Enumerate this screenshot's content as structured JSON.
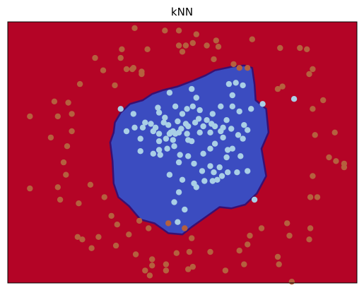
{
  "chart_data": {
    "type": "scatter",
    "title": "kNN",
    "xlabel": "",
    "ylabel": "",
    "xlim": [
      -1.5,
      1.5
    ],
    "ylim": [
      -1.1,
      1.0
    ],
    "grid": false,
    "ticks": false,
    "colors": {
      "class_0_region": "#b40426",
      "class_1_region": "#3b4cc0",
      "boundary": "#3b0f70",
      "class_0_point": "#b5603e",
      "class_1_point": "#a9cfe6"
    },
    "decision_region_class_1_outline": [
      [
        -0.58,
        0.19
      ],
      [
        -0.53,
        0.27
      ],
      [
        -0.45,
        0.34
      ],
      [
        -0.34,
        0.37
      ],
      [
        -0.26,
        0.42
      ],
      [
        -0.17,
        0.45
      ],
      [
        -0.04,
        0.48
      ],
      [
        0.1,
        0.53
      ],
      [
        0.2,
        0.57
      ],
      [
        0.28,
        0.61
      ],
      [
        0.43,
        0.64
      ],
      [
        0.53,
        0.65
      ],
      [
        0.6,
        0.63
      ],
      [
        0.62,
        0.5
      ],
      [
        0.63,
        0.37
      ],
      [
        0.72,
        0.3
      ],
      [
        0.74,
        0.11
      ],
      [
        0.68,
        -0.02
      ],
      [
        0.72,
        -0.24
      ],
      [
        0.64,
        -0.38
      ],
      [
        0.54,
        -0.47
      ],
      [
        0.42,
        -0.5
      ],
      [
        0.32,
        -0.49
      ],
      [
        0.23,
        -0.55
      ],
      [
        0.08,
        -0.65
      ],
      [
        0.0,
        -0.71
      ],
      [
        -0.12,
        -0.7
      ],
      [
        -0.24,
        -0.62
      ],
      [
        -0.36,
        -0.59
      ],
      [
        -0.46,
        -0.48
      ],
      [
        -0.55,
        -0.41
      ],
      [
        -0.59,
        -0.3
      ],
      [
        -0.6,
        -0.12
      ],
      [
        -0.62,
        0.03
      ],
      [
        -0.59,
        0.11
      ]
    ],
    "series": [
      {
        "class": 0,
        "points": [
          [
            -0.41,
            0.95
          ],
          [
            -0.15,
            0.93
          ],
          [
            -0.03,
            0.93
          ],
          [
            0.12,
            0.9
          ],
          [
            0.29,
            0.85
          ],
          [
            0.6,
            0.86
          ],
          [
            0.84,
            0.79
          ],
          [
            -0.52,
            0.78
          ],
          [
            -0.53,
            0.71
          ],
          [
            -0.3,
            0.78
          ],
          [
            -0.03,
            0.81
          ],
          [
            0.21,
            0.81
          ],
          [
            0.31,
            0.8
          ],
          [
            -0.75,
            0.71
          ],
          [
            -0.68,
            0.61
          ],
          [
            -0.48,
            0.62
          ],
          [
            -0.42,
            0.63
          ],
          [
            -0.35,
            0.58
          ],
          [
            0.0,
            0.76
          ],
          [
            0.03,
            0.81
          ],
          [
            0.09,
            0.83
          ],
          [
            0.27,
            0.7
          ],
          [
            1.01,
            0.79
          ],
          [
            1.07,
            0.78
          ],
          [
            0.44,
            0.66
          ],
          [
            0.49,
            0.63
          ],
          [
            0.56,
            0.63
          ],
          [
            1.09,
            0.58
          ],
          [
            1.12,
            0.62
          ],
          [
            -0.88,
            0.5
          ],
          [
            -0.98,
            0.35
          ],
          [
            -1.1,
            0.36
          ],
          [
            -0.58,
            0.49
          ],
          [
            0.82,
            0.46
          ],
          [
            0.86,
            0.48
          ],
          [
            1.21,
            0.37
          ],
          [
            1.12,
            0.3
          ],
          [
            -0.95,
            0.26
          ],
          [
            -1.07,
            0.24
          ],
          [
            -1.31,
            0.24
          ],
          [
            -0.95,
            0.12
          ],
          [
            -1.13,
            0.07
          ],
          [
            -0.99,
            0.0
          ],
          [
            1.14,
            0.09
          ],
          [
            1.31,
            0.11
          ],
          [
            -1.02,
            -0.13
          ],
          [
            1.26,
            -0.09
          ],
          [
            1.32,
            -0.12
          ],
          [
            1.39,
            -0.14
          ],
          [
            1.39,
            -0.17
          ],
          [
            1.12,
            -0.24
          ],
          [
            -1.0,
            -0.23
          ],
          [
            -1.31,
            -0.34
          ],
          [
            -1.07,
            -0.33
          ],
          [
            -0.79,
            -0.31
          ],
          [
            -0.67,
            -0.41
          ],
          [
            -0.89,
            -0.46
          ],
          [
            -1.05,
            -0.43
          ],
          [
            1.1,
            -0.41
          ],
          [
            1.16,
            -0.41
          ],
          [
            -0.61,
            -0.56
          ],
          [
            -0.56,
            -0.63
          ],
          [
            -0.37,
            -0.6
          ],
          [
            -0.29,
            -0.66
          ],
          [
            -0.12,
            -0.62
          ],
          [
            0.02,
            -0.66
          ],
          [
            0.08,
            -0.74
          ],
          [
            0.58,
            -0.72
          ],
          [
            0.68,
            -0.66
          ],
          [
            0.9,
            -0.62
          ],
          [
            1.1,
            -0.66
          ],
          [
            1.09,
            -0.75
          ],
          [
            -0.46,
            -0.71
          ],
          [
            -0.72,
            -0.73
          ],
          [
            -0.78,
            -0.82
          ],
          [
            -0.57,
            -0.8
          ],
          [
            -0.4,
            -0.87
          ],
          [
            -0.14,
            -0.95
          ],
          [
            -0.05,
            -0.86
          ],
          [
            0.06,
            -0.85
          ],
          [
            0.24,
            -0.85
          ],
          [
            0.49,
            -0.84
          ],
          [
            0.56,
            -0.79
          ],
          [
            0.82,
            -0.89
          ],
          [
            -0.9,
            -0.73
          ],
          [
            -0.86,
            -0.75
          ],
          [
            -0.32,
            -1.0
          ],
          [
            -0.14,
            -1.0
          ],
          [
            0.09,
            -0.97
          ],
          [
            0.05,
            -0.99
          ],
          [
            0.37,
            -1.0
          ],
          [
            0.53,
            -0.95
          ],
          [
            0.83,
            -0.95
          ],
          [
            -0.26,
            -0.91
          ],
          [
            -0.26,
            -0.96
          ],
          [
            -0.28,
            -1.04
          ],
          [
            0.92,
            -0.72
          ],
          [
            0.94,
            -1.09
          ],
          [
            -0.43,
            0.62
          ],
          [
            -0.35,
            0.6
          ]
        ]
      },
      {
        "class": 1,
        "points": [
          [
            0.4,
            0.5
          ],
          [
            0.46,
            0.51
          ],
          [
            0.52,
            0.49
          ],
          [
            0.08,
            0.46
          ],
          [
            -0.11,
            0.43
          ],
          [
            0.12,
            0.39
          ],
          [
            -0.53,
            0.3
          ],
          [
            -0.21,
            0.31
          ],
          [
            -0.06,
            0.32
          ],
          [
            -0.2,
            0.27
          ],
          [
            -0.15,
            0.23
          ],
          [
            -0.16,
            0.19
          ],
          [
            -0.12,
            0.17
          ],
          [
            -0.04,
            0.2
          ],
          [
            -0.27,
            0.18
          ],
          [
            0.0,
            0.26
          ],
          [
            0.04,
            0.3
          ],
          [
            0.09,
            0.32
          ],
          [
            0.15,
            0.29
          ],
          [
            0.26,
            0.26
          ],
          [
            0.33,
            0.32
          ],
          [
            0.43,
            0.32
          ],
          [
            0.43,
            0.41
          ],
          [
            0.49,
            0.28
          ],
          [
            0.59,
            0.3
          ],
          [
            0.69,
            0.34
          ],
          [
            0.96,
            0.38
          ],
          [
            -0.42,
            0.26
          ],
          [
            -0.32,
            0.19
          ],
          [
            -0.41,
            0.15
          ],
          [
            -0.34,
            0.15
          ],
          [
            -0.25,
            0.12
          ],
          [
            -0.2,
            0.1
          ],
          [
            -0.03,
            0.11
          ],
          [
            -0.01,
            0.14
          ],
          [
            0.03,
            0.18
          ],
          [
            0.05,
            0.16
          ],
          [
            0.11,
            0.19
          ],
          [
            0.14,
            0.22
          ],
          [
            0.18,
            0.16
          ],
          [
            0.21,
            0.21
          ],
          [
            0.25,
            0.18
          ],
          [
            0.28,
            0.16
          ],
          [
            0.35,
            0.15
          ],
          [
            0.38,
            0.21
          ],
          [
            0.42,
            0.14
          ],
          [
            0.53,
            0.17
          ],
          [
            0.56,
            0.13
          ],
          [
            -0.48,
            0.12
          ],
          [
            -0.36,
            0.06
          ],
          [
            -0.2,
            0.04
          ],
          [
            -0.14,
            0.06
          ],
          [
            -0.08,
            0.05
          ],
          [
            0.05,
            0.05
          ],
          [
            0.08,
            0.04
          ],
          [
            0.15,
            0.11
          ],
          [
            0.24,
            0.11
          ],
          [
            0.33,
            0.12
          ],
          [
            0.35,
            0.07
          ],
          [
            0.48,
            0.09
          ],
          [
            0.52,
            0.06
          ],
          [
            -0.36,
            -0.04
          ],
          [
            -0.25,
            -0.06
          ],
          [
            -0.2,
            -0.03
          ],
          [
            -0.13,
            -0.02
          ],
          [
            -0.02,
            -0.07
          ],
          [
            0.05,
            -0.08
          ],
          [
            0.18,
            -0.06
          ],
          [
            0.24,
            -0.02
          ],
          [
            0.28,
            0.02
          ],
          [
            0.39,
            -0.03
          ],
          [
            0.43,
            -0.02
          ],
          [
            -0.03,
            -0.13
          ],
          [
            0.1,
            -0.14
          ],
          [
            0.24,
            -0.16
          ],
          [
            0.27,
            -0.21
          ],
          [
            0.34,
            -0.24
          ],
          [
            0.39,
            -0.21
          ],
          [
            0.47,
            -0.21
          ],
          [
            0.56,
            -0.2
          ],
          [
            0.19,
            -0.28
          ],
          [
            0.26,
            -0.28
          ],
          [
            0.3,
            -0.27
          ],
          [
            -0.11,
            -0.23
          ],
          [
            0.0,
            -0.27
          ],
          [
            0.1,
            -0.3
          ],
          [
            0.12,
            -0.33
          ],
          [
            -0.03,
            -0.37
          ],
          [
            -0.07,
            -0.45
          ],
          [
            0.62,
            -0.43
          ],
          [
            -0.04,
            -0.61
          ],
          [
            0.02,
            -0.51
          ],
          [
            0.32,
            -0.17
          ],
          [
            0.17,
            -0.2
          ],
          [
            0.38,
            -0.09
          ],
          [
            0.5,
            -0.08
          ],
          [
            -0.19,
            -0.07
          ],
          [
            -0.23,
            0.15
          ],
          [
            0.04,
            0.1
          ],
          [
            -0.07,
            0.0
          ]
        ]
      },
      {
        "class": 1,
        "points": [
          [
            -0.08,
            0.12
          ],
          [
            -0.1,
            0.11
          ],
          [
            -0.11,
            0.1
          ],
          [
            -0.06,
            0.1
          ]
        ]
      }
    ]
  }
}
